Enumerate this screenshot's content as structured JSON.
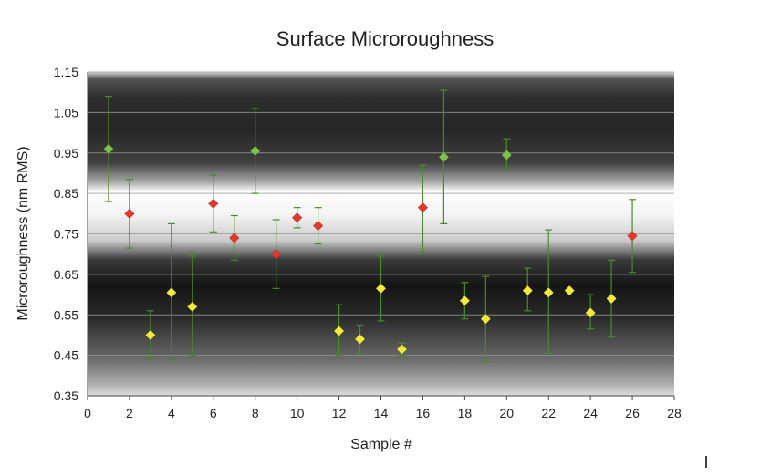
{
  "chart_data": {
    "type": "scatter",
    "title": "Surface Microroughness",
    "xlabel": "Sample #",
    "ylabel": "Microroughness (nm RMS)",
    "xlim": [
      0,
      28
    ],
    "ylim": [
      0.35,
      1.15
    ],
    "xticks": [
      0,
      2,
      4,
      6,
      8,
      10,
      12,
      14,
      16,
      18,
      20,
      22,
      24,
      26,
      28
    ],
    "yticks": [
      0.35,
      0.45,
      0.55,
      0.65,
      0.75,
      0.85,
      0.95,
      1.05,
      1.15
    ],
    "ytick_labels": [
      "0.35",
      "0.45",
      "0.55",
      "0.65",
      "0.75",
      "0.85",
      "0.95",
      "1.05",
      "1.15"
    ],
    "grid": true,
    "marker": "diamond",
    "colors": {
      "green": "#7fc24a",
      "red": "#e0392b",
      "yellow": "#f2ea3a",
      "errorbar": "#4a8a2a"
    },
    "points": [
      {
        "x": 1,
        "y": 0.96,
        "low": 0.83,
        "high": 1.09,
        "color": "green"
      },
      {
        "x": 2,
        "y": 0.8,
        "low": 0.715,
        "high": 0.885,
        "color": "red"
      },
      {
        "x": 3,
        "y": 0.5,
        "low": 0.44,
        "high": 0.56,
        "color": "yellow"
      },
      {
        "x": 4,
        "y": 0.605,
        "low": 0.44,
        "high": 0.775,
        "color": "yellow"
      },
      {
        "x": 5,
        "y": 0.57,
        "low": 0.45,
        "high": 0.695,
        "color": "yellow"
      },
      {
        "x": 6,
        "y": 0.825,
        "low": 0.755,
        "high": 0.895,
        "color": "red"
      },
      {
        "x": 7,
        "y": 0.74,
        "low": 0.685,
        "high": 0.795,
        "color": "red"
      },
      {
        "x": 8,
        "y": 0.955,
        "low": 0.85,
        "high": 1.06,
        "color": "green"
      },
      {
        "x": 9,
        "y": 0.7,
        "low": 0.615,
        "high": 0.785,
        "color": "red"
      },
      {
        "x": 10,
        "y": 0.79,
        "low": 0.765,
        "high": 0.815,
        "color": "red"
      },
      {
        "x": 11,
        "y": 0.77,
        "low": 0.725,
        "high": 0.815,
        "color": "red"
      },
      {
        "x": 12,
        "y": 0.51,
        "low": 0.45,
        "high": 0.575,
        "color": "yellow"
      },
      {
        "x": 13,
        "y": 0.49,
        "low": 0.455,
        "high": 0.525,
        "color": "yellow"
      },
      {
        "x": 14,
        "y": 0.615,
        "low": 0.535,
        "high": 0.695,
        "color": "yellow"
      },
      {
        "x": 15,
        "y": 0.465,
        "low": 0.45,
        "high": 0.48,
        "color": "yellow"
      },
      {
        "x": 16,
        "y": 0.815,
        "low": 0.705,
        "high": 0.92,
        "color": "red"
      },
      {
        "x": 17,
        "y": 0.94,
        "low": 0.775,
        "high": 1.105,
        "color": "green"
      },
      {
        "x": 18,
        "y": 0.585,
        "low": 0.54,
        "high": 0.63,
        "color": "yellow"
      },
      {
        "x": 19,
        "y": 0.54,
        "low": 0.435,
        "high": 0.645,
        "color": "yellow"
      },
      {
        "x": 20,
        "y": 0.945,
        "low": 0.905,
        "high": 0.985,
        "color": "green"
      },
      {
        "x": 21,
        "y": 0.61,
        "low": 0.56,
        "high": 0.665,
        "color": "yellow"
      },
      {
        "x": 22,
        "y": 0.605,
        "low": 0.455,
        "high": 0.76,
        "color": "yellow"
      },
      {
        "x": 23,
        "y": 0.61,
        "low": 0.61,
        "high": 0.61,
        "color": "yellow"
      },
      {
        "x": 24,
        "y": 0.555,
        "low": 0.515,
        "high": 0.6,
        "color": "yellow"
      },
      {
        "x": 25,
        "y": 0.59,
        "low": 0.495,
        "high": 0.685,
        "color": "yellow"
      },
      {
        "x": 26,
        "y": 0.745,
        "low": 0.655,
        "high": 0.835,
        "color": "red"
      }
    ]
  }
}
